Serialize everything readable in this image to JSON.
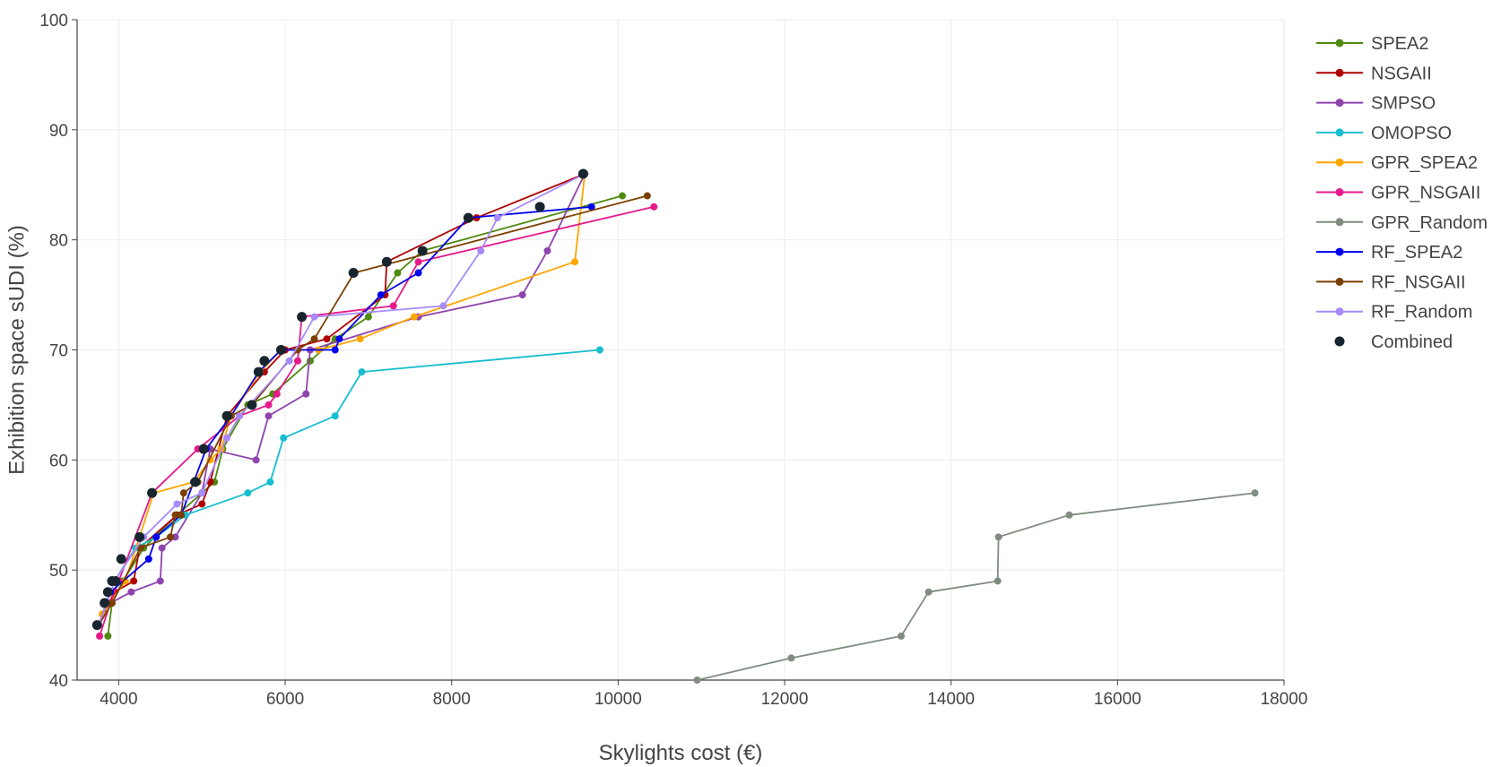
{
  "chart_data": {
    "type": "line",
    "title": "",
    "xlabel": "Skylights cost (€)",
    "ylabel": "Exhibition space sUDI (%)",
    "xlim": [
      3500,
      18000
    ],
    "ylim": [
      40,
      100
    ],
    "x_ticks": [
      "4000",
      "6000",
      "8000",
      "10000",
      "12000",
      "14000",
      "16000",
      "18000"
    ],
    "y_ticks": [
      "40",
      "50",
      "60",
      "70",
      "80",
      "90",
      "100"
    ],
    "grid": true,
    "legend_position": "top-right",
    "series": [
      {
        "name": "SPEA2",
        "color": "#4f8a10",
        "mode": "lines+markers",
        "points": [
          [
            3870,
            44
          ],
          [
            3920,
            47
          ],
          [
            4050,
            49
          ],
          [
            4300,
            52
          ],
          [
            4700,
            55
          ],
          [
            5150,
            58
          ],
          [
            5250,
            61
          ],
          [
            5550,
            65
          ],
          [
            5850,
            66
          ],
          [
            6300,
            69
          ],
          [
            6600,
            71
          ],
          [
            7000,
            73
          ],
          [
            7350,
            77
          ],
          [
            7650,
            79
          ],
          [
            10050,
            84
          ]
        ]
      },
      {
        "name": "NSGAII",
        "color": "#b00000",
        "mode": "lines+markers",
        "points": [
          [
            3750,
            45
          ],
          [
            3950,
            48
          ],
          [
            4180,
            49
          ],
          [
            4250,
            52
          ],
          [
            4700,
            55
          ],
          [
            5000,
            56
          ],
          [
            5100,
            58
          ],
          [
            5300,
            64
          ],
          [
            5750,
            68
          ],
          [
            6000,
            70
          ],
          [
            6500,
            71
          ],
          [
            7200,
            75
          ],
          [
            7220,
            78
          ],
          [
            8300,
            82
          ],
          [
            9600,
            86
          ]
        ]
      },
      {
        "name": "SMPSO",
        "color": "#8e44ad",
        "mode": "lines+markers",
        "points": [
          [
            3900,
            47
          ],
          [
            4150,
            48
          ],
          [
            4500,
            49
          ],
          [
            4520,
            52
          ],
          [
            4680,
            53
          ],
          [
            5000,
            57
          ],
          [
            5100,
            61
          ],
          [
            5650,
            60
          ],
          [
            5800,
            64
          ],
          [
            6250,
            66
          ],
          [
            6300,
            70
          ],
          [
            7600,
            73
          ],
          [
            8850,
            75
          ],
          [
            9150,
            79
          ],
          [
            9600,
            86
          ]
        ]
      },
      {
        "name": "OMOPSO",
        "color": "#17becf",
        "mode": "lines+markers",
        "points": [
          [
            3950,
            49
          ],
          [
            4200,
            52
          ],
          [
            4450,
            53
          ],
          [
            4800,
            55
          ],
          [
            5550,
            57
          ],
          [
            5820,
            58
          ],
          [
            5980,
            62
          ],
          [
            6600,
            64
          ],
          [
            6920,
            68
          ],
          [
            9780,
            70
          ]
        ]
      },
      {
        "name": "GPR_SPEA2",
        "color": "#ffa500",
        "mode": "lines+markers",
        "points": [
          [
            3800,
            46
          ],
          [
            4080,
            49
          ],
          [
            4420,
            57
          ],
          [
            4900,
            58
          ],
          [
            5100,
            60
          ],
          [
            5230,
            61
          ],
          [
            5350,
            64
          ],
          [
            5700,
            68
          ],
          [
            5950,
            70
          ],
          [
            6400,
            70
          ],
          [
            6900,
            71
          ],
          [
            7550,
            73
          ],
          [
            9480,
            78
          ],
          [
            9600,
            86
          ]
        ]
      },
      {
        "name": "GPR_NSGAII",
        "color": "#e6198b",
        "mode": "lines+markers",
        "points": [
          [
            3770,
            44
          ],
          [
            3900,
            47
          ],
          [
            4000,
            49
          ],
          [
            4400,
            57
          ],
          [
            4950,
            61
          ],
          [
            5450,
            64
          ],
          [
            5800,
            65
          ],
          [
            5900,
            66
          ],
          [
            6150,
            69
          ],
          [
            6200,
            73
          ],
          [
            7300,
            74
          ],
          [
            7600,
            78
          ],
          [
            10430,
            83
          ]
        ]
      },
      {
        "name": "GPR_Random",
        "color": "#7f8c7f",
        "mode": "lines+markers",
        "points": [
          [
            10950,
            40
          ],
          [
            12080,
            42
          ],
          [
            13400,
            44
          ],
          [
            13730,
            48
          ],
          [
            14560,
            49
          ],
          [
            14570,
            53
          ],
          [
            15420,
            55
          ],
          [
            17650,
            57
          ]
        ]
      },
      {
        "name": "RF_SPEA2",
        "color": "#0000ee",
        "mode": "lines+markers",
        "points": [
          [
            3760,
            45
          ],
          [
            3900,
            48
          ],
          [
            4360,
            51
          ],
          [
            4450,
            53
          ],
          [
            4750,
            55
          ],
          [
            4900,
            58
          ],
          [
            5050,
            61
          ],
          [
            5350,
            64
          ],
          [
            5680,
            68
          ],
          [
            5950,
            70
          ],
          [
            6600,
            70
          ],
          [
            6650,
            71
          ],
          [
            7150,
            75
          ],
          [
            7600,
            77
          ],
          [
            8200,
            82
          ],
          [
            9680,
            83
          ]
        ]
      },
      {
        "name": "RF_NSGAII",
        "color": "#7b3f00",
        "mode": "lines+markers",
        "points": [
          [
            3760,
            45
          ],
          [
            3920,
            47
          ],
          [
            4260,
            52
          ],
          [
            4620,
            53
          ],
          [
            4680,
            55
          ],
          [
            4750,
            55
          ],
          [
            4780,
            57
          ],
          [
            4950,
            58
          ],
          [
            5350,
            64
          ],
          [
            5600,
            65
          ],
          [
            6150,
            70
          ],
          [
            6350,
            71
          ],
          [
            6830,
            77
          ],
          [
            10350,
            84
          ]
        ]
      },
      {
        "name": "RF_Random",
        "color": "#a78bfa",
        "mode": "lines+markers",
        "points": [
          [
            3760,
            45
          ],
          [
            3950,
            49
          ],
          [
            4300,
            53
          ],
          [
            4700,
            56
          ],
          [
            5000,
            57
          ],
          [
            5300,
            62
          ],
          [
            5450,
            64
          ],
          [
            6050,
            69
          ],
          [
            6350,
            73
          ],
          [
            7900,
            74
          ],
          [
            8350,
            79
          ],
          [
            8550,
            82
          ],
          [
            9600,
            86
          ]
        ]
      },
      {
        "name": "Combined",
        "color": "#17252e",
        "mode": "markers",
        "points": [
          [
            3740,
            45
          ],
          [
            3830,
            47
          ],
          [
            3870,
            48
          ],
          [
            3920,
            49
          ],
          [
            3960,
            49
          ],
          [
            4030,
            51
          ],
          [
            4250,
            53
          ],
          [
            4400,
            57
          ],
          [
            4920,
            58
          ],
          [
            5020,
            61
          ],
          [
            5300,
            64
          ],
          [
            5600,
            65
          ],
          [
            5680,
            68
          ],
          [
            5750,
            69
          ],
          [
            5950,
            70
          ],
          [
            6200,
            73
          ],
          [
            6820,
            77
          ],
          [
            7220,
            78
          ],
          [
            7650,
            79
          ],
          [
            8200,
            82
          ],
          [
            9060,
            83
          ],
          [
            9580,
            86
          ]
        ]
      }
    ]
  }
}
